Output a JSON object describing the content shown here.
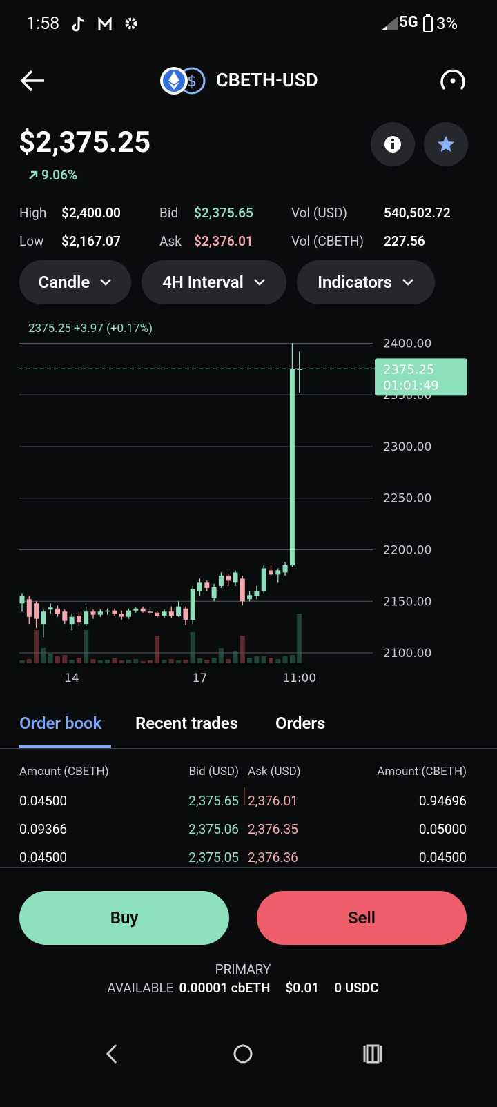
{
  "status_bar": {
    "time": "1:58",
    "network": "5G",
    "battery": "3%"
  },
  "header": {
    "title": "CBETH-USD"
  },
  "price": {
    "value": "$2,375.25",
    "change": "9.06%"
  },
  "stats": [
    {
      "label": "High",
      "value": "$2,400.00"
    },
    {
      "label": "Bid",
      "value": "$2,375.65"
    },
    {
      "label": "Vol (USD)",
      "value": "540,502.72"
    },
    {
      "label": "Low",
      "value": "$2,167.07"
    },
    {
      "label": "Ask",
      "value": "$2,376.01"
    },
    {
      "label": "Vol (CBETH)",
      "value": "227.56"
    }
  ],
  "controls": [
    "Candle",
    "4H Interval",
    "Indicators"
  ],
  "chart": {
    "type": "candlestick",
    "summary": "2375.25 +3.97 (+0.17%)",
    "last_price": 2375.25,
    "countdown": "01:01:49",
    "up_color": "#8ee0bd",
    "down_color": "#f4a8ae",
    "up_volume_color": "#1d4535",
    "down_volume_color": "#5a2a2f",
    "categories": [
      null,
      null,
      null,
      null,
      null,
      null,
      null,
      "14",
      null,
      null,
      null,
      null,
      null,
      null,
      null,
      null,
      null,
      null,
      null,
      null,
      null,
      null,
      null,
      null,
      null,
      "17",
      null,
      null,
      null,
      null,
      null,
      null,
      null,
      null,
      null,
      null,
      null,
      null,
      null,
      "11:00"
    ],
    "open": [
      2148,
      2152,
      2148,
      2128,
      2142,
      2143,
      2140,
      2128,
      2136,
      2128,
      2140,
      2137,
      2140,
      2141,
      2138,
      2135,
      2141,
      2143,
      2140,
      2139,
      2136,
      2140,
      2136,
      2143,
      2132,
      2160,
      2168,
      2153,
      2165,
      2175,
      2168,
      2172,
      2152,
      2155,
      2160,
      2180,
      2176,
      2178,
      2185,
      2375
    ],
    "high": [
      2158,
      2155,
      2150,
      2142,
      2148,
      2146,
      2142,
      2138,
      2140,
      2145,
      2142,
      2142,
      2143,
      2143,
      2141,
      2143,
      2144,
      2145,
      2142,
      2141,
      2142,
      2145,
      2150,
      2145,
      2165,
      2172,
      2170,
      2167,
      2178,
      2177,
      2180,
      2175,
      2160,
      2165,
      2185,
      2185,
      2182,
      2188,
      2400,
      2392
    ],
    "low": [
      2140,
      2128,
      2124,
      2115,
      2138,
      2135,
      2128,
      2122,
      2126,
      2126,
      2133,
      2135,
      2137,
      2136,
      2132,
      2133,
      2139,
      2139,
      2137,
      2134,
      2134,
      2134,
      2135,
      2127,
      2128,
      2155,
      2160,
      2150,
      2163,
      2165,
      2165,
      2146,
      2150,
      2152,
      2158,
      2175,
      2168,
      2175,
      2183,
      2352
    ],
    "close": [
      2155,
      2135,
      2133,
      2140,
      2144,
      2138,
      2131,
      2135,
      2130,
      2140,
      2137,
      2140,
      2141,
      2138,
      2135,
      2141,
      2143,
      2140,
      2139,
      2136,
      2140,
      2136,
      2145,
      2132,
      2162,
      2168,
      2163,
      2164,
      2175,
      2170,
      2178,
      2150,
      2156,
      2160,
      2182,
      2176,
      2180,
      2185,
      2375,
      2375.25
    ],
    "volume": [
      4,
      6,
      48,
      22,
      14,
      10,
      12,
      5,
      8,
      48,
      6,
      4,
      5,
      8,
      4,
      5,
      6,
      3,
      4,
      40,
      5,
      6,
      4,
      5,
      45,
      7,
      5,
      8,
      22,
      6,
      18,
      40,
      8,
      10,
      10,
      8,
      6,
      10,
      12,
      72
    ],
    "ylim": [
      2090,
      2425
    ],
    "yticks": [
      {
        "value": 2100,
        "label": "2100.00"
      },
      {
        "value": 2150,
        "label": "2150.00"
      },
      {
        "value": 2200,
        "label": "2200.00"
      },
      {
        "value": 2250,
        "label": "2250.00"
      },
      {
        "value": 2300,
        "label": "2300.00"
      },
      {
        "value": 2350,
        "label": "2350.00"
      },
      {
        "value": 2400,
        "label": "2400.00"
      }
    ]
  },
  "tabs": [
    "Order book",
    "Recent trades",
    "Orders"
  ],
  "order_book": {
    "headers": [
      "Amount (CBETH)",
      "Bid (USD)",
      "Ask (USD)",
      "Amount (CBETH)"
    ],
    "rows": [
      [
        "0.04500",
        "2,375.65",
        "2,376.01",
        "0.94696"
      ],
      [
        "0.09366",
        "2,375.06",
        "2,376.35",
        "0.05000"
      ],
      [
        "0.04500",
        "2,375.05",
        "2,376.36",
        "0.04500"
      ]
    ]
  },
  "actions": {
    "buy": "Buy",
    "sell": "Sell"
  },
  "account": {
    "title": "PRIMARY",
    "label": "AVAILABLE",
    "balances": [
      "0.00001 cbETH",
      "$0.01",
      "0 USDC"
    ]
  }
}
